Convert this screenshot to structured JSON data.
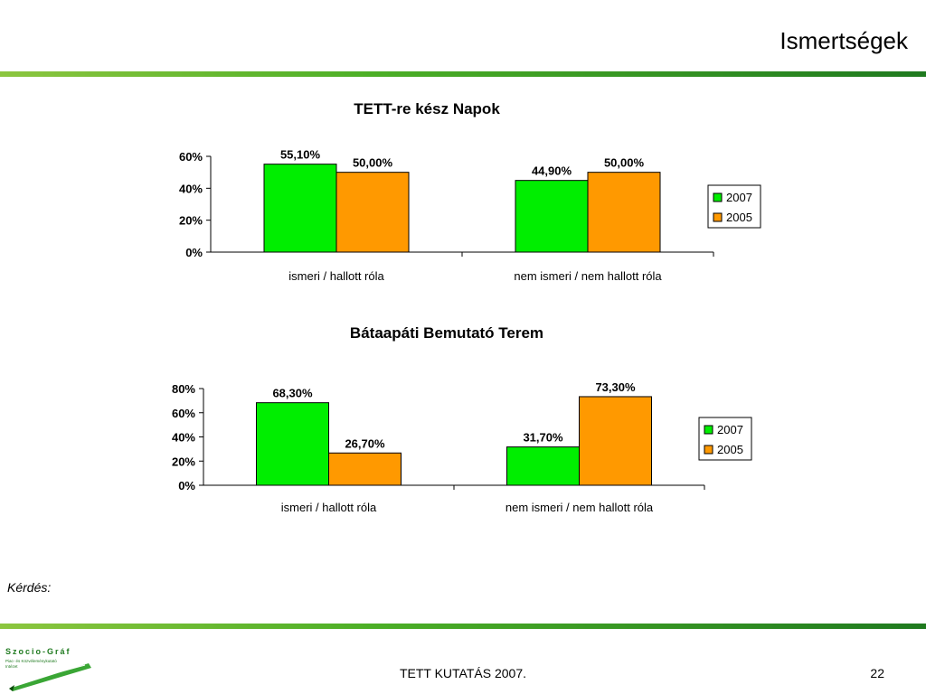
{
  "slide": {
    "title": "Ismertségek",
    "question_label": "Kérdés:",
    "footer_text": "TETT KUTATÁS 2007.",
    "page_number": "22",
    "logo_text": {
      "name": "Szocio-Gráf",
      "line1": "Piac- és Közvéleménykutató",
      "line2": "Intézet"
    }
  },
  "colors": {
    "series_2007": "#00ee00",
    "series_2005": "#ff9900",
    "band": "#2e8b22"
  },
  "chart_data": [
    {
      "type": "bar",
      "title": "TETT-re kész Napok",
      "categories": [
        "ismeri / hallott róla",
        "nem ismeri / nem hallott róla"
      ],
      "series": [
        {
          "name": "2007",
          "values": [
            55.1,
            44.9
          ]
        },
        {
          "name": "2005",
          "values": [
            50.0,
            50.0
          ]
        }
      ],
      "data_labels": [
        [
          "55,10%",
          "44,90%"
        ],
        [
          "50,00%",
          "50,00%"
        ]
      ],
      "yticks": [
        "0%",
        "20%",
        "40%",
        "60%"
      ],
      "ylim": [
        0,
        60
      ],
      "legend": "right",
      "grid": false
    },
    {
      "type": "bar",
      "title": "Bátaapáti Bemutató Terem",
      "categories": [
        "ismeri / hallott róla",
        "nem ismeri / nem hallott róla"
      ],
      "series": [
        {
          "name": "2007",
          "values": [
            68.3,
            31.7
          ]
        },
        {
          "name": "2005",
          "values": [
            26.7,
            73.3
          ]
        }
      ],
      "data_labels": [
        [
          "68,30%",
          "31,70%"
        ],
        [
          "26,70%",
          "73,30%"
        ]
      ],
      "yticks": [
        "0%",
        "20%",
        "40%",
        "60%",
        "80%"
      ],
      "ylim": [
        0,
        80
      ],
      "legend": "right",
      "grid": false
    }
  ]
}
